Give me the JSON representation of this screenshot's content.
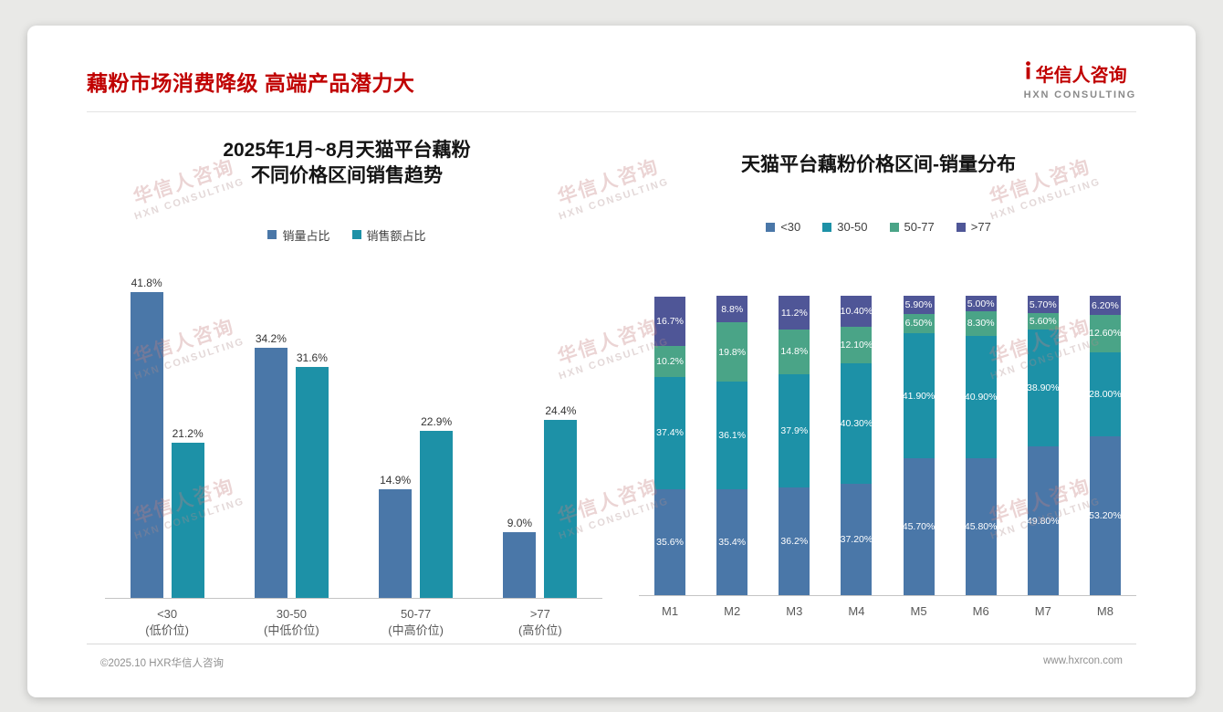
{
  "page": {
    "title": "藕粉市场消费降级 高端产品潜力大",
    "accent_red": "#c00000",
    "background_color": "#e9e9e7",
    "logo": {
      "name": "华信人咨询",
      "subtitle": "HXN CONSULTING"
    },
    "watermark": {
      "line1": "华信人咨询",
      "line2": "HXN CONSULTING"
    },
    "footer": {
      "left": "©2025.10 HXR华信人咨询",
      "right": "www.hxrcon.com"
    }
  },
  "chart_data": [
    {
      "type": "bar",
      "title_lines": [
        "2025年1月~8月天猫平台藕粉",
        "不同价格区间销售趋势"
      ],
      "categories": [
        {
          "label": "<30",
          "sub": "(低价位)"
        },
        {
          "label": "30-50",
          "sub": "(中低价位)"
        },
        {
          "label": "50-77",
          "sub": "(中高价位)"
        },
        {
          "label": ">77",
          "sub": "(高价位)"
        }
      ],
      "series": [
        {
          "name": "销量占比",
          "color": "#4a77a8",
          "values": [
            41.8,
            34.2,
            14.9,
            9.0
          ],
          "labels": [
            "41.8%",
            "34.2%",
            "14.9%",
            "9.0%"
          ]
        },
        {
          "name": "销售额占比",
          "color": "#1d91a7",
          "values": [
            21.2,
            31.6,
            22.9,
            24.4
          ],
          "labels": [
            "21.2%",
            "31.6%",
            "22.9%",
            "24.4%"
          ]
        }
      ],
      "ylim": [
        0,
        45
      ],
      "grid": false,
      "legend_position": "top",
      "value_labels": "above-bars"
    },
    {
      "type": "stacked-bar",
      "title": "天猫平台藕粉价格区间-销量分布",
      "categories": [
        "M1",
        "M2",
        "M3",
        "M4",
        "M5",
        "M6",
        "M7",
        "M8"
      ],
      "series": [
        {
          "name": "<30",
          "color": "#4a77a8",
          "values": [
            35.6,
            35.4,
            36.2,
            37.2,
            45.7,
            45.8,
            49.8,
            53.2
          ],
          "labels": [
            "35.6%",
            "35.4%",
            "36.2%",
            "37.20%",
            "45.70%",
            "45.80%",
            "49.80%",
            "53.20%"
          ]
        },
        {
          "name": "30-50",
          "color": "#1d91a7",
          "values": [
            37.4,
            36.1,
            37.9,
            40.3,
            41.9,
            40.9,
            38.9,
            28.0
          ],
          "labels": [
            "37.4%",
            "36.1%",
            "37.9%",
            "40.30%",
            "41.90%",
            "40.90%",
            "38.90%",
            "28.00%"
          ]
        },
        {
          "name": "50-77",
          "color": "#4aa487",
          "values": [
            10.2,
            19.8,
            14.8,
            12.1,
            6.5,
            8.3,
            5.6,
            12.6
          ],
          "labels": [
            "10.2%",
            "19.8%",
            "14.8%",
            "12.10%",
            "6.50%",
            "8.30%",
            "5.60%",
            "12.60%"
          ]
        },
        {
          "name": ">77",
          "color": "#4f5697",
          "values": [
            16.7,
            8.8,
            11.2,
            10.4,
            5.9,
            5.0,
            5.7,
            6.2
          ],
          "labels": [
            "16.7%",
            "8.8%",
            "11.2%",
            "10.40%",
            "5.90%",
            "5.00%",
            "5.70%",
            "6.20%"
          ]
        }
      ],
      "ylim": [
        0,
        100
      ],
      "grid": false,
      "legend_position": "top",
      "value_labels": "inside-segments"
    }
  ]
}
